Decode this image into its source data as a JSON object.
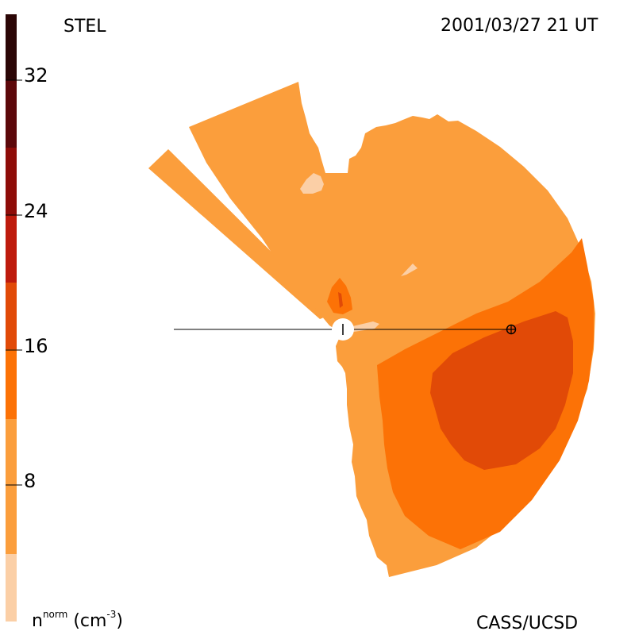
{
  "header": {
    "instrument": "STEL",
    "timestamp": "2001/03/27 21 UT"
  },
  "footer": {
    "credit": "CASS/UCSD"
  },
  "legend": {
    "base_label": "n",
    "superscript_label": "norm",
    "unit_label": "(cm",
    "unit_exponent": "-3",
    "unit_close": ")",
    "ticks": [
      "32",
      "24",
      "16",
      "8"
    ],
    "colors": {
      "level_0": "#fbcfa6",
      "level_1": "#fb9e3c",
      "level_2": "#fc7206",
      "level_3": "#e14a07",
      "level_4": "#be1b0d",
      "level_5": "#8e0c08",
      "level_6": "#5c080a",
      "level_7": "#2b0606"
    }
  },
  "map": {
    "background_color": "#ffffff",
    "sun_marker": "sun-icon",
    "earth_marker": "earth-icon"
  }
}
